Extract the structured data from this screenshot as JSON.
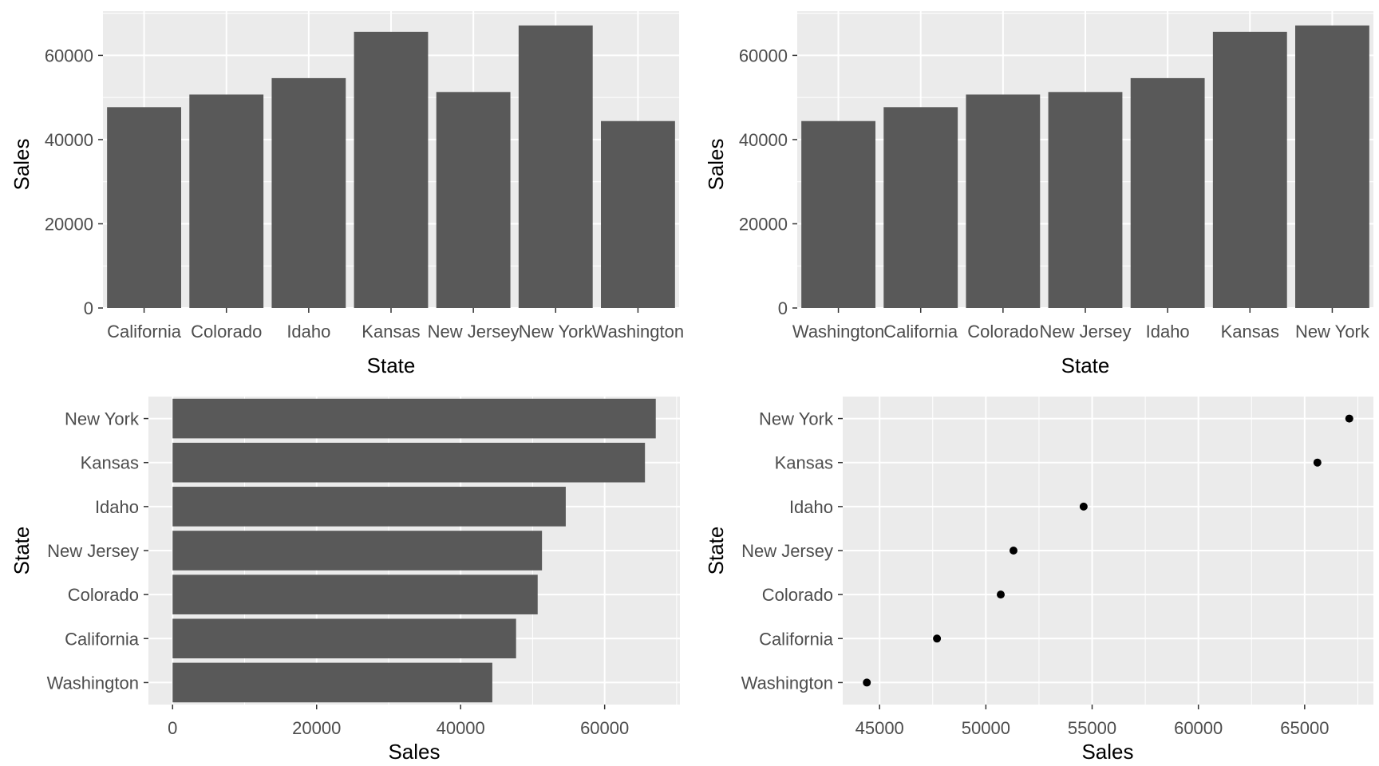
{
  "theme": {
    "panel_bg": "#ebebeb",
    "grid_major": "#ffffff",
    "bar_fill": "#595959",
    "point_fill": "#000000",
    "tick_color": "#333333",
    "tick_text": "#4d4d4d"
  },
  "chart_data": [
    {
      "id": "p1",
      "type": "bar",
      "orientation": "vertical",
      "xlabel": "State",
      "ylabel": "Sales",
      "categories": [
        "California",
        "Colorado",
        "Idaho",
        "Kansas",
        "New Jersey",
        "New York",
        "Washington"
      ],
      "values": [
        47700,
        50700,
        54600,
        65600,
        51300,
        67100,
        44400
      ],
      "ylim": [
        0,
        70500
      ],
      "ticks": [
        0,
        20000,
        40000,
        60000
      ],
      "tick_labels": [
        "0",
        "20000",
        "40000",
        "60000"
      ],
      "grid": true
    },
    {
      "id": "p2",
      "type": "bar",
      "orientation": "vertical",
      "xlabel": "State",
      "ylabel": "Sales",
      "categories": [
        "Washington",
        "California",
        "Colorado",
        "New Jersey",
        "Idaho",
        "Kansas",
        "New York"
      ],
      "values": [
        44400,
        47700,
        50700,
        51300,
        54600,
        65600,
        67100
      ],
      "ylim": [
        0,
        70500
      ],
      "ticks": [
        0,
        20000,
        40000,
        60000
      ],
      "tick_labels": [
        "0",
        "20000",
        "40000",
        "60000"
      ],
      "grid": true
    },
    {
      "id": "p3",
      "type": "bar",
      "orientation": "horizontal",
      "xlabel": "Sales",
      "ylabel": "State",
      "categories": [
        "Washington",
        "California",
        "Colorado",
        "New Jersey",
        "Idaho",
        "Kansas",
        "New York"
      ],
      "values": [
        44400,
        47700,
        50700,
        51300,
        54600,
        65600,
        67100
      ],
      "xlim": [
        -3355,
        70455
      ],
      "ticks": [
        0,
        20000,
        40000,
        60000
      ],
      "tick_labels": [
        "0",
        "20000",
        "40000",
        "60000"
      ],
      "grid": true
    },
    {
      "id": "p4",
      "type": "scatter",
      "xlabel": "Sales",
      "ylabel": "State",
      "categories": [
        "Washington",
        "California",
        "Colorado",
        "New Jersey",
        "Idaho",
        "Kansas",
        "New York"
      ],
      "values": [
        44400,
        47700,
        50700,
        51300,
        54600,
        65600,
        67100
      ],
      "xlim": [
        43265,
        68235
      ],
      "ticks": [
        45000,
        50000,
        55000,
        60000,
        65000
      ],
      "tick_labels": [
        "45000",
        "50000",
        "55000",
        "60000",
        "65000"
      ],
      "grid": true
    }
  ]
}
